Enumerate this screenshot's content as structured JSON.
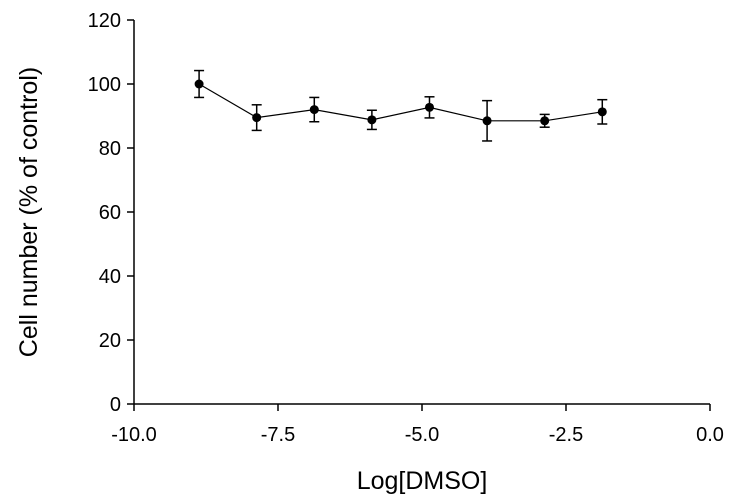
{
  "chart_data": {
    "type": "line",
    "title": "",
    "xlabel": "Log[DMSO]",
    "ylabel": "Cell number (% of control)",
    "xlim": [
      -10.0,
      0.0
    ],
    "ylim": [
      0,
      120
    ],
    "x_ticks": [
      -10.0,
      -7.5,
      -5.0,
      -2.5,
      0.0
    ],
    "x_tick_labels": [
      "-10.0",
      "-7.5",
      "-5.0",
      "-2.5",
      "0.0"
    ],
    "y_ticks": [
      0,
      20,
      40,
      60,
      80,
      100,
      120
    ],
    "y_tick_labels": [
      "0",
      "20",
      "40",
      "60",
      "80",
      "100",
      "120"
    ],
    "grid": false,
    "series": [
      {
        "x": [
          -8.87,
          -7.87,
          -6.87,
          -5.87,
          -4.87,
          -3.87,
          -2.87,
          -1.87
        ],
        "y": [
          100.0,
          89.5,
          92.0,
          88.8,
          92.7,
          88.5,
          88.5,
          91.3
        ],
        "error": [
          4.2,
          4.0,
          3.8,
          3.0,
          3.3,
          6.3,
          2.0,
          3.8
        ]
      }
    ],
    "color": "#000000"
  }
}
